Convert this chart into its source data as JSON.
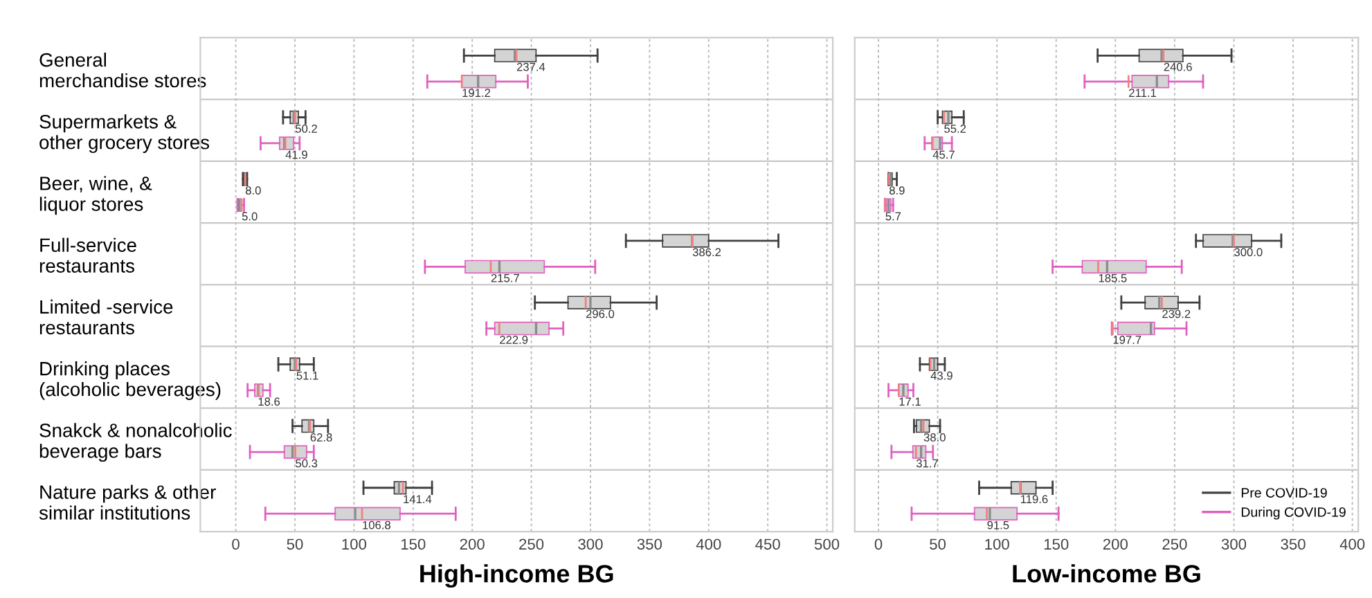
{
  "chart_data": [
    {
      "type": "box",
      "xlabel": "High-income BG",
      "orientation": "horizontal",
      "categories": [
        "General\nmerchandise stores",
        "Supermarkets &\nother grocery stores",
        "Beer, wine, &\nliquor stores",
        "Full-service\nrestaurants",
        "Limited -service\nrestaurants",
        "Drinking places\n(alcoholic beverages)",
        "Snakck & nonalcoholic\nbeverage bars",
        "Nature parks & other\nsimilar institutions"
      ],
      "xlim": [
        -30,
        505
      ],
      "xticks": [
        0,
        50,
        100,
        150,
        200,
        250,
        300,
        350,
        400,
        450,
        500
      ],
      "grid": "x",
      "legend": false,
      "series": [
        {
          "color": "#404040",
          "value_labels": [
            "237.4",
            "50.2",
            "8.0",
            "386.2",
            "296.0",
            "51.1",
            "62.8",
            "141.4"
          ],
          "boxes": [
            {
              "low": 193,
              "q1": 219,
              "median": 236,
              "q3": 254,
              "high": 306,
              "mean": 237.4
            },
            {
              "low": 40,
              "q1": 46,
              "median": 49,
              "q3": 53,
              "high": 59,
              "mean": 50.2
            },
            {
              "low": 6,
              "q1": 7,
              "median": 8,
              "q3": 9,
              "high": 9.6,
              "mean": 8.0
            },
            {
              "low": 330,
              "q1": 361,
              "median": 386,
              "q3": 400,
              "high": 459,
              "mean": 386.2
            },
            {
              "low": 253,
              "q1": 281,
              "median": 300,
              "q3": 317,
              "high": 356,
              "mean": 296.0
            },
            {
              "low": 36,
              "q1": 46,
              "median": 50,
              "q3": 54,
              "high": 66,
              "mean": 51.1
            },
            {
              "low": 48,
              "q1": 56,
              "median": 62,
              "q3": 66,
              "high": 78,
              "mean": 62.8
            },
            {
              "low": 108,
              "q1": 134,
              "median": 138,
              "q3": 144,
              "high": 166,
              "mean": 141.4
            }
          ]
        },
        {
          "color": "#e060c0",
          "value_labels": [
            "191.2",
            "41.9",
            "5.0",
            "215.7",
            "222.9",
            "18.6",
            "50.3",
            "106.8"
          ],
          "boxes": [
            {
              "low": 162,
              "q1": 191,
              "median": 205,
              "q3": 220,
              "high": 247,
              "mean": 191.2
            },
            {
              "low": 21,
              "q1": 37,
              "median": 41,
              "q3": 49,
              "high": 54,
              "mean": 41.9
            },
            {
              "low": 1.4,
              "q1": 2,
              "median": 3,
              "q3": 5,
              "high": 7,
              "mean": 5.0
            },
            {
              "low": 160,
              "q1": 194,
              "median": 223,
              "q3": 261,
              "high": 304,
              "mean": 215.7
            },
            {
              "low": 212,
              "q1": 219,
              "median": 254,
              "q3": 265,
              "high": 277,
              "mean": 222.9
            },
            {
              "low": 10,
              "q1": 16,
              "median": 19,
              "q3": 23,
              "high": 29,
              "mean": 18.6
            },
            {
              "low": 12,
              "q1": 41,
              "median": 48,
              "q3": 60,
              "high": 66,
              "mean": 50.3
            },
            {
              "low": 25,
              "q1": 84,
              "median": 101,
              "q3": 139,
              "high": 186,
              "mean": 106.8
            }
          ]
        }
      ]
    },
    {
      "type": "box",
      "xlabel": "Low-income BG",
      "orientation": "horizontal",
      "categories": [
        null,
        null,
        null,
        null,
        null,
        null,
        null,
        null
      ],
      "xlim": [
        -20,
        405
      ],
      "xticks": [
        0,
        50,
        100,
        150,
        200,
        250,
        300,
        350,
        400
      ],
      "grid": "x",
      "legend": "bottom right",
      "tick_labels": "x",
      "series": [
        {
          "name": "Pre COVID-19",
          "color": "#404040",
          "value_labels": [
            "240.6",
            "55.2",
            "8.9",
            "300.0",
            "239.2",
            "43.9",
            "38.0",
            "119.6"
          ],
          "boxes": [
            {
              "low": 185,
              "q1": 220,
              "median": 239,
              "q3": 257,
              "high": 298,
              "mean": 240.6
            },
            {
              "low": 50,
              "q1": 54,
              "median": 59,
              "q3": 62,
              "high": 72,
              "mean": 55.2
            },
            {
              "low": 8.5,
              "q1": 9.3,
              "median": 10.5,
              "q3": 11.6,
              "high": 15.5,
              "mean": 8.9
            },
            {
              "low": 268,
              "q1": 274,
              "median": 299,
              "q3": 315,
              "high": 340,
              "mean": 300.0
            },
            {
              "low": 205,
              "q1": 225,
              "median": 237,
              "q3": 253,
              "high": 271,
              "mean": 239.2
            },
            {
              "low": 35,
              "q1": 43,
              "median": 47,
              "q3": 50,
              "high": 56,
              "mean": 43.9
            },
            {
              "low": 30,
              "q1": 32,
              "median": 36,
              "q3": 43,
              "high": 52,
              "mean": 38.0
            },
            {
              "low": 85,
              "q1": 112,
              "median": 120,
              "q3": 133,
              "high": 147,
              "mean": 119.6
            }
          ]
        },
        {
          "name": "During COVID-19",
          "color": "#e060c0",
          "value_labels": [
            "211.1",
            "45.7",
            "5.7",
            "185.5",
            "197.7",
            "17.1",
            "31.7",
            "91.5"
          ],
          "boxes": [
            {
              "low": 174,
              "q1": 214,
              "median": 235,
              "q3": 245,
              "high": 274,
              "mean": 211.1
            },
            {
              "low": 39,
              "q1": 45,
              "median": 52,
              "q3": 54,
              "high": 62,
              "mean": 45.7
            },
            {
              "low": 5.4,
              "q1": 6.6,
              "median": 8.5,
              "q3": 10.5,
              "high": 12.4,
              "mean": 5.7
            },
            {
              "low": 147,
              "q1": 172,
              "median": 193,
              "q3": 226,
              "high": 256,
              "mean": 185.5
            },
            {
              "low": 197,
              "q1": 202,
              "median": 230,
              "q3": 233,
              "high": 260,
              "mean": 197.7
            },
            {
              "low": 8.5,
              "q1": 17,
              "median": 21,
              "q3": 25,
              "high": 29.5,
              "mean": 17.1
            },
            {
              "low": 11,
              "q1": 29,
              "median": 36,
              "q3": 40,
              "high": 46,
              "mean": 31.7
            },
            {
              "low": 28,
              "q1": 81,
              "median": 94,
              "q3": 117,
              "high": 152,
              "mean": 91.5
            }
          ]
        }
      ]
    }
  ]
}
